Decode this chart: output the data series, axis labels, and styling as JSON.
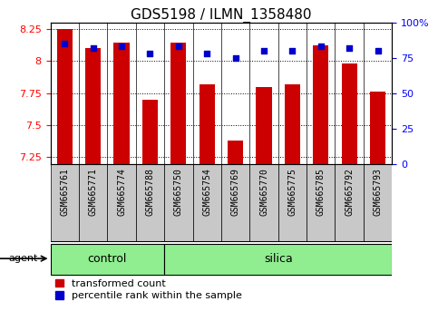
{
  "title": "GDS5198 / ILMN_1358480",
  "samples": [
    "GSM665761",
    "GSM665771",
    "GSM665774",
    "GSM665788",
    "GSM665750",
    "GSM665754",
    "GSM665769",
    "GSM665770",
    "GSM665775",
    "GSM665785",
    "GSM665792",
    "GSM665793"
  ],
  "groups": [
    "control",
    "control",
    "control",
    "control",
    "silica",
    "silica",
    "silica",
    "silica",
    "silica",
    "silica",
    "silica",
    "silica"
  ],
  "bar_values": [
    8.25,
    8.1,
    8.14,
    7.7,
    8.14,
    7.82,
    7.38,
    7.8,
    7.82,
    8.12,
    7.98,
    7.76
  ],
  "percentile_values": [
    85,
    82,
    83,
    78,
    83,
    78,
    75,
    80,
    80,
    83,
    82,
    80
  ],
  "bar_color": "#cc0000",
  "dot_color": "#0000cc",
  "ylim_left": [
    7.2,
    8.3
  ],
  "ylim_right": [
    0,
    100
  ],
  "yticks_left": [
    7.25,
    7.5,
    7.75,
    8.0,
    8.25
  ],
  "yticks_right": [
    0,
    25,
    50,
    75,
    100
  ],
  "yticklabels_left": [
    "7.25",
    "7.5",
    "7.75",
    "8",
    "8.25"
  ],
  "yticklabels_right": [
    "0",
    "25",
    "50",
    "75",
    "100%"
  ],
  "group_green": "#90EE90",
  "tick_bg_gray": "#c8c8c8",
  "legend_red_label": "transformed count",
  "legend_blue_label": "percentile rank within the sample",
  "bar_width": 0.55,
  "title_fontsize": 11,
  "label_fontsize": 8,
  "tick_fontsize": 8
}
